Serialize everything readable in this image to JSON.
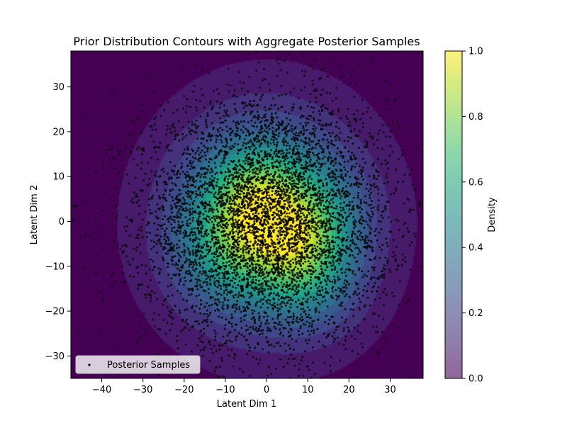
{
  "chart_data": {
    "type": "scatter",
    "title": "Prior Distribution Contours with Aggregate Posterior Samples",
    "xlabel": "Latent Dim 1",
    "ylabel": "Latent Dim 2",
    "xlim": [
      -47.5,
      38
    ],
    "ylim": [
      -35,
      38
    ],
    "x_ticks": [
      -40,
      -30,
      -20,
      -10,
      0,
      10,
      20,
      30
    ],
    "y_ticks": [
      -30,
      -20,
      -10,
      0,
      10,
      20,
      30
    ],
    "grid": false,
    "background_contours": {
      "type": "filled-density",
      "colormap": "viridis",
      "peaks": [
        {
          "x": -3,
          "y": 5,
          "weight": 1.0
        },
        {
          "x": 7,
          "y": -6,
          "weight": 0.75
        },
        {
          "x": -11,
          "y": -7,
          "weight": 0.55
        },
        {
          "x": 12,
          "y": -14,
          "weight": 0.45
        },
        {
          "x": 13,
          "y": 1,
          "weight": 0.45
        }
      ]
    },
    "series": [
      {
        "name": "Posterior Samples",
        "color": "#000000",
        "marker": "dot",
        "approx_count": 6000,
        "center": [
          0,
          0
        ],
        "spread_std": [
          15,
          14
        ]
      }
    ],
    "legend": {
      "position": "lower-left",
      "entries": [
        "Posterior Samples"
      ]
    },
    "colorbar": {
      "label": "Density",
      "range": [
        0,
        1
      ],
      "ticks": [
        "0.0",
        "0.2",
        "0.4",
        "0.6",
        "0.8",
        "1.0"
      ],
      "colormap": "viridis"
    }
  }
}
